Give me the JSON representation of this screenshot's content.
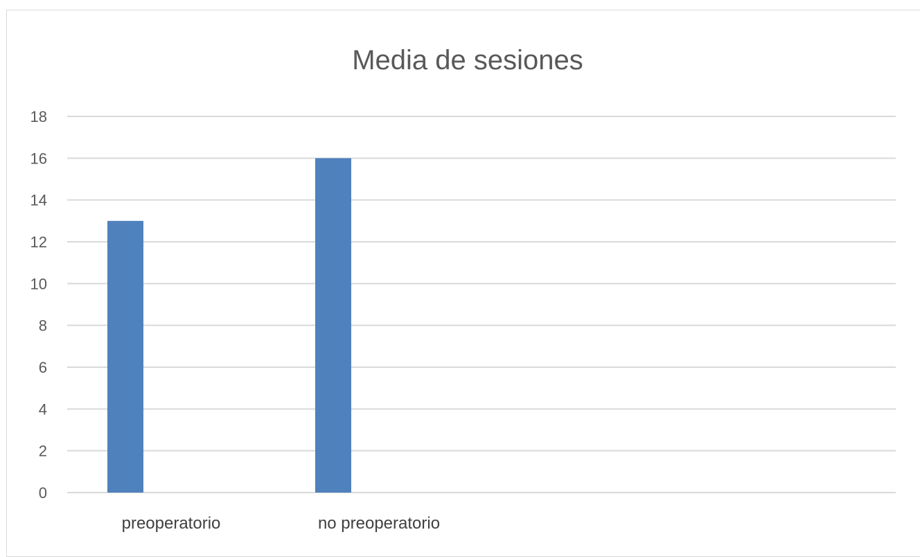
{
  "chart_data": {
    "type": "bar",
    "title": "Media de sesiones",
    "categories": [
      "preoperatorio",
      "no preoperatorio"
    ],
    "values": [
      13,
      16
    ],
    "ylim": [
      0,
      18
    ],
    "yticks": [
      0,
      2,
      4,
      6,
      8,
      10,
      12,
      14,
      16,
      18
    ],
    "grid": true,
    "bar_color": "#4f81bd",
    "grid_color": "#d9d9d9"
  }
}
